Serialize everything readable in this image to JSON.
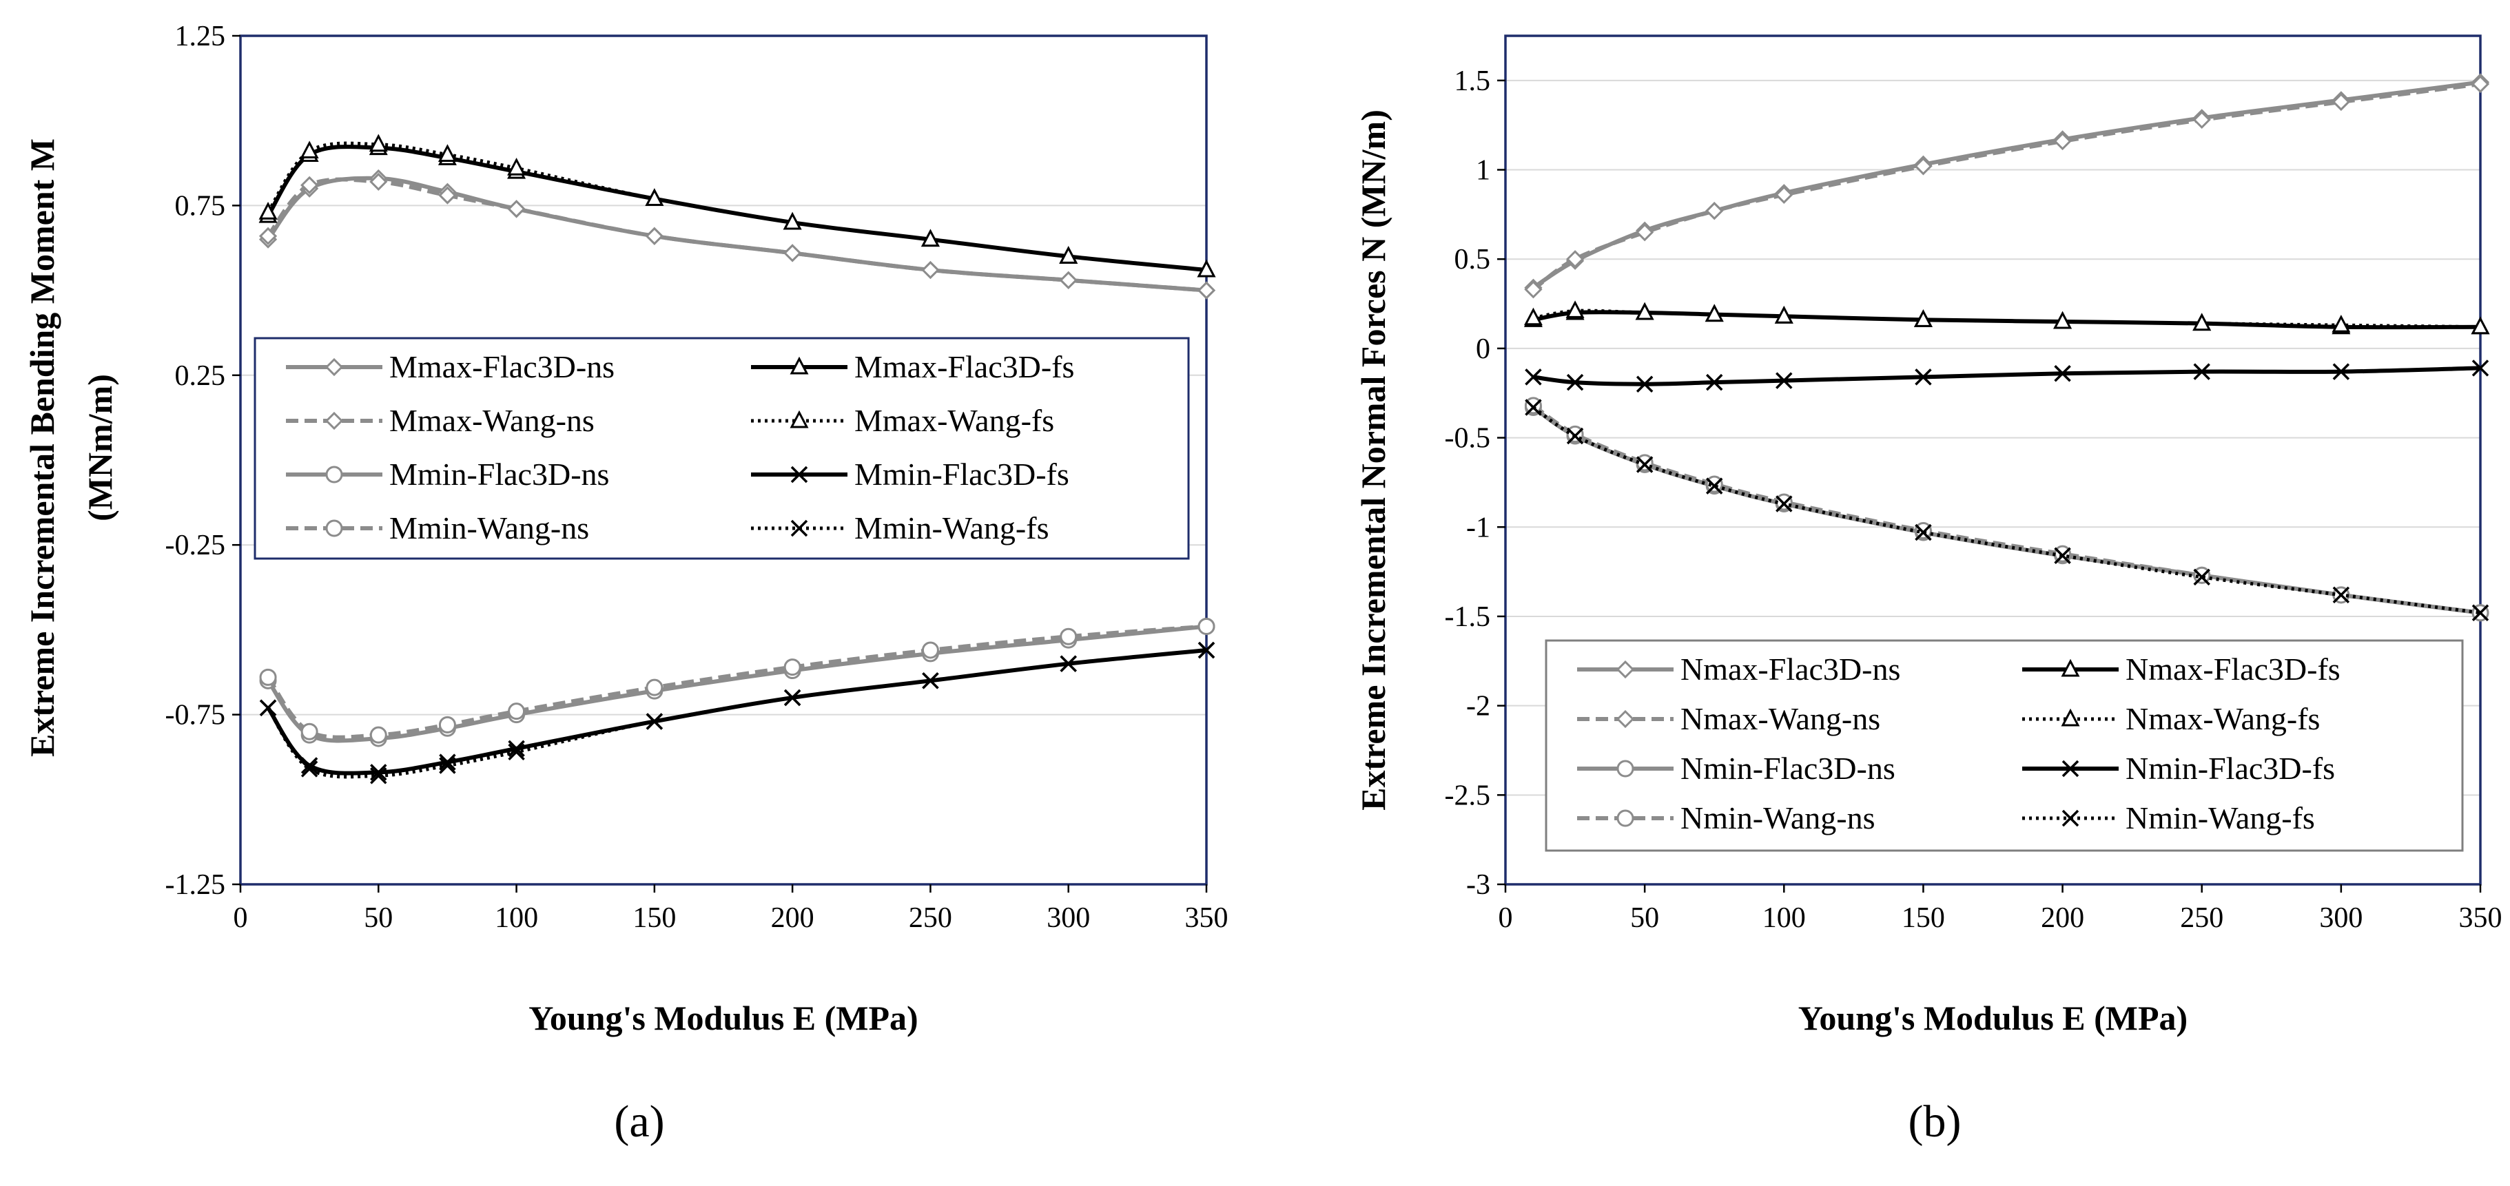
{
  "panel_labels": [
    "(a)",
    "(b)"
  ],
  "chart_data": [
    {
      "type": "line",
      "panel": "(a)",
      "xlabel": "Young's Modulus E (MPa)",
      "ylabel_lines": [
        "Extreme Incremental Bending Moment M",
        "(MNm/m)"
      ],
      "xlim": [
        0,
        350
      ],
      "ylim": [
        -1.25,
        1.25
      ],
      "x_ticks": [
        "0",
        "50",
        "100",
        "150",
        "200",
        "250",
        "300",
        "350"
      ],
      "y_ticks": [
        "1.25",
        "0.75",
        "0.25",
        "-0.25",
        "-0.75",
        "-1.25"
      ],
      "grid": "horizontal",
      "legend_position": "center",
      "x": [
        10,
        25,
        50,
        75,
        100,
        150,
        200,
        250,
        300,
        350
      ],
      "series": [
        {
          "name": "Mmax-Flac3D-ns",
          "color": "#8c8c8c",
          "dash": "solid",
          "marker": "diamond",
          "values": [
            0.65,
            0.8,
            0.83,
            0.79,
            0.74,
            0.66,
            0.61,
            0.56,
            0.53,
            0.5
          ]
        },
        {
          "name": "Mmax-Flac3D-fs",
          "color": "#000000",
          "dash": "solid",
          "marker": "triangle",
          "values": [
            0.72,
            0.9,
            0.92,
            0.89,
            0.85,
            0.77,
            0.7,
            0.65,
            0.6,
            0.56
          ]
        },
        {
          "name": "Mmax-Wang-ns",
          "color": "#8c8c8c",
          "dash": "dashed",
          "marker": "diamond",
          "values": [
            0.66,
            0.81,
            0.82,
            0.78,
            0.74,
            0.66,
            0.61,
            0.56,
            0.53,
            0.5
          ]
        },
        {
          "name": "Mmax-Wang-fs",
          "color": "#000000",
          "dash": "dotted",
          "marker": "triangle",
          "values": [
            0.73,
            0.91,
            0.93,
            0.9,
            0.86,
            0.77,
            0.7,
            0.65,
            0.6,
            0.56
          ]
        },
        {
          "name": "Mmin-Flac3D-ns",
          "color": "#8c8c8c",
          "dash": "solid",
          "marker": "circle",
          "values": [
            -0.65,
            -0.81,
            -0.82,
            -0.79,
            -0.75,
            -0.68,
            -0.62,
            -0.57,
            -0.53,
            -0.49
          ]
        },
        {
          "name": "Mmin-Flac3D-fs",
          "color": "#000000",
          "dash": "solid",
          "marker": "x",
          "values": [
            -0.73,
            -0.9,
            -0.92,
            -0.89,
            -0.85,
            -0.77,
            -0.7,
            -0.65,
            -0.6,
            -0.56
          ]
        },
        {
          "name": "Mmin-Wang-ns",
          "color": "#8c8c8c",
          "dash": "dashed",
          "marker": "circle",
          "values": [
            -0.64,
            -0.8,
            -0.81,
            -0.78,
            -0.74,
            -0.67,
            -0.61,
            -0.56,
            -0.52,
            -0.49
          ]
        },
        {
          "name": "Mmin-Wang-fs",
          "color": "#000000",
          "dash": "dotted",
          "marker": "x",
          "values": [
            -0.73,
            -0.91,
            -0.93,
            -0.9,
            -0.86,
            -0.77,
            -0.7,
            -0.65,
            -0.6,
            -0.56
          ]
        }
      ]
    },
    {
      "type": "line",
      "panel": "(b)",
      "xlabel": "Young's Modulus E (MPa)",
      "ylabel_lines": [
        "Extreme Incremental Normal Forces N (MN/m)"
      ],
      "xlim": [
        0,
        350
      ],
      "ylim": [
        -3,
        1.75
      ],
      "x_ticks": [
        "0",
        "50",
        "100",
        "150",
        "200",
        "250",
        "300",
        "350"
      ],
      "y_ticks": [
        "1.5",
        "1",
        "0.5",
        "0",
        "-0.5",
        "-1",
        "-1.5",
        "-2",
        "-2.5",
        "-3"
      ],
      "grid": "horizontal",
      "legend_position": "bottom",
      "x": [
        10,
        25,
        50,
        75,
        100,
        150,
        200,
        250,
        300,
        350
      ],
      "series": [
        {
          "name": "Nmax-Flac3D-ns",
          "color": "#8c8c8c",
          "dash": "solid",
          "marker": "diamond",
          "values": [
            0.34,
            0.49,
            0.66,
            0.77,
            0.87,
            1.03,
            1.17,
            1.29,
            1.39,
            1.49
          ]
        },
        {
          "name": "Nmax-Flac3D-fs",
          "color": "#000000",
          "dash": "solid",
          "marker": "triangle",
          "values": [
            0.16,
            0.2,
            0.2,
            0.19,
            0.18,
            0.16,
            0.15,
            0.14,
            0.12,
            0.12
          ]
        },
        {
          "name": "Nmax-Wang-ns",
          "color": "#8c8c8c",
          "dash": "dashed",
          "marker": "diamond",
          "values": [
            0.33,
            0.5,
            0.65,
            0.77,
            0.86,
            1.02,
            1.16,
            1.28,
            1.38,
            1.48
          ]
        },
        {
          "name": "Nmax-Wang-fs",
          "color": "#000000",
          "dash": "dotted",
          "marker": "triangle",
          "values": [
            0.17,
            0.21,
            0.2,
            0.19,
            0.18,
            0.16,
            0.15,
            0.14,
            0.13,
            0.12
          ]
        },
        {
          "name": "Nmin-Flac3D-ns",
          "color": "#8c8c8c",
          "dash": "solid",
          "marker": "circle",
          "values": [
            -0.33,
            -0.49,
            -0.65,
            -0.77,
            -0.87,
            -1.03,
            -1.16,
            -1.27,
            -1.38,
            -1.48
          ]
        },
        {
          "name": "Nmin-Flac3D-fs",
          "color": "#000000",
          "dash": "solid",
          "marker": "x",
          "values": [
            -0.16,
            -0.19,
            -0.2,
            -0.19,
            -0.18,
            -0.16,
            -0.14,
            -0.13,
            -0.13,
            -0.11
          ]
        },
        {
          "name": "Nmin-Wang-ns",
          "color": "#8c8c8c",
          "dash": "dashed",
          "marker": "circle",
          "values": [
            -0.32,
            -0.48,
            -0.64,
            -0.76,
            -0.86,
            -1.02,
            -1.15,
            -1.27,
            -1.38,
            -1.48
          ]
        },
        {
          "name": "Nmin-Wang-fs",
          "color": "#000000",
          "dash": "dotted",
          "marker": "x",
          "values": [
            -0.33,
            -0.49,
            -0.65,
            -0.77,
            -0.87,
            -1.03,
            -1.16,
            -1.28,
            -1.38,
            -1.48
          ]
        }
      ]
    }
  ]
}
